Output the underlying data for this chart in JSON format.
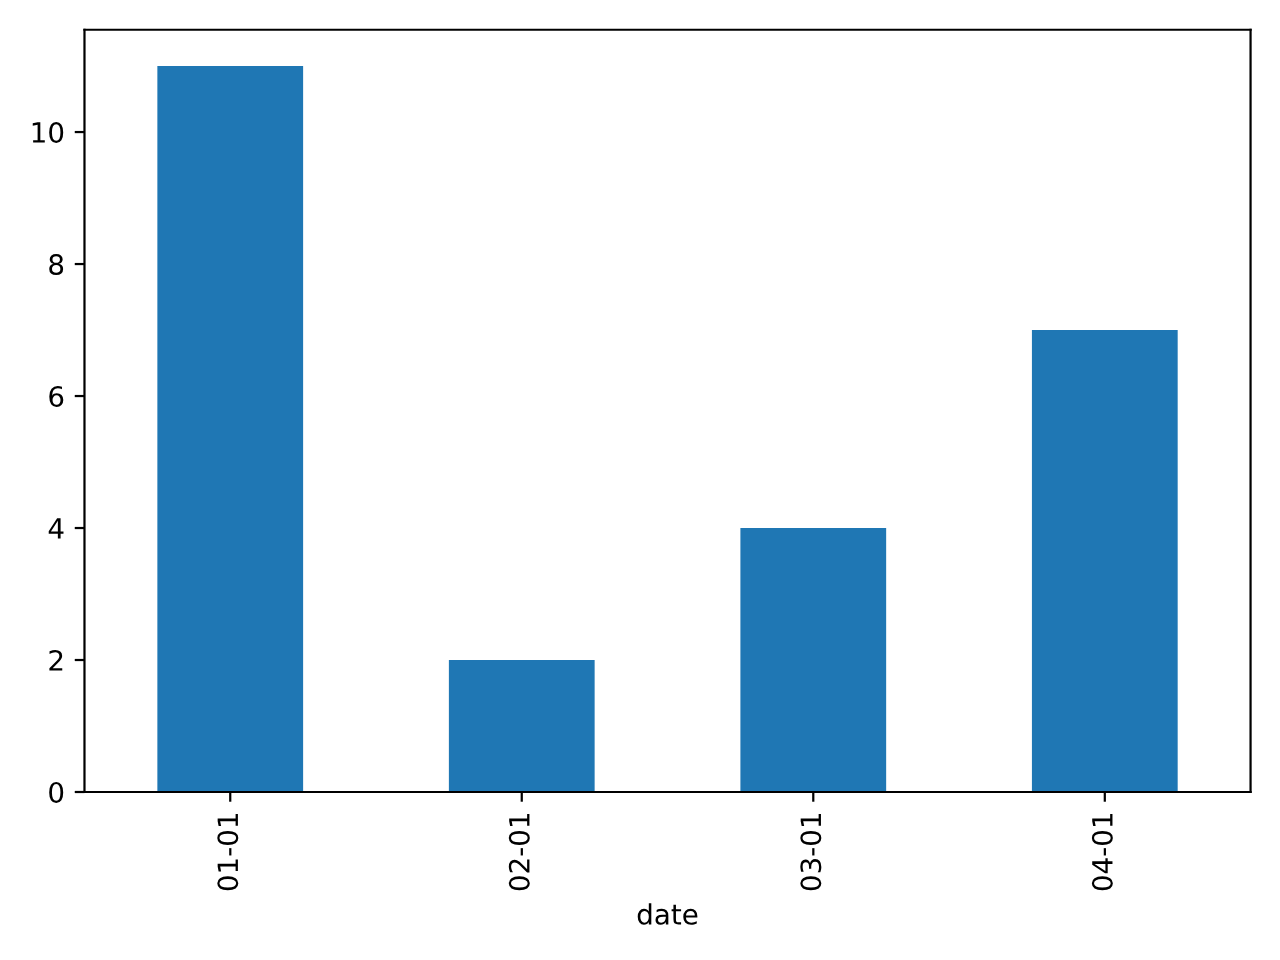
{
  "chart_data": {
    "type": "bar",
    "xlabel": "date",
    "categories": [
      "01-01",
      "02-01",
      "03-01",
      "04-01"
    ],
    "values": [
      11,
      2,
      4,
      7
    ],
    "color": "#1f77b4",
    "ylim": [
      0,
      11.55
    ],
    "yticks": [
      0,
      2,
      4,
      6,
      8,
      10
    ]
  }
}
